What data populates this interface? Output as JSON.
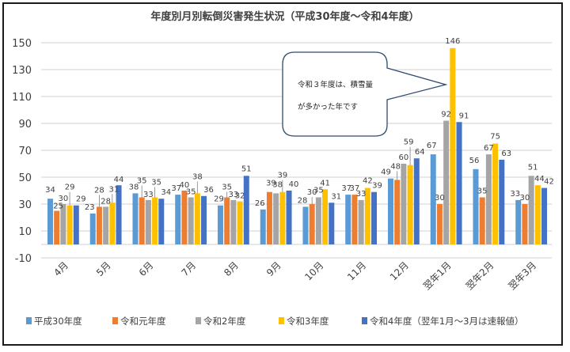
{
  "chart_data": {
    "type": "bar",
    "title": "年度別月別転倒災害発生状況（平成30年度～令和4年度）",
    "xlabel": "",
    "ylabel": "",
    "ylim": [
      -10,
      150
    ],
    "yticks": [
      -10,
      10,
      30,
      50,
      70,
      90,
      110,
      130,
      150
    ],
    "grid": true,
    "legend_position": "bottom",
    "categories": [
      "4月",
      "5月",
      "6月",
      "7月",
      "8月",
      "9月",
      "10月",
      "11月",
      "12月",
      "翌年1月",
      "翌年2月",
      "翌年3月"
    ],
    "series": [
      {
        "name": "平成30年度",
        "color": "#5B9BD5",
        "values": [
          34,
          23,
          38,
          37,
          29,
          26,
          28,
          37,
          49,
          67,
          56,
          33
        ]
      },
      {
        "name": "令和元年度",
        "color": "#ED7D31",
        "values": [
          25,
          28,
          35,
          40,
          35,
          39,
          30,
          37,
          48,
          30,
          35,
          30
        ]
      },
      {
        "name": "令和2年度",
        "color": "#A5A5A5",
        "values": [
          30,
          28,
          33,
          35,
          33,
          38,
          35,
          33,
          60,
          92,
          67,
          51
        ]
      },
      {
        "name": "令和3年度",
        "color": "#FFC000",
        "values": [
          29,
          31,
          35,
          38,
          32,
          39,
          41,
          42,
          59,
          146,
          75,
          44
        ]
      },
      {
        "name": "令和4年度（翌年1月～3月は速報値）",
        "color": "#4472C4",
        "values": [
          29,
          44,
          34,
          36,
          51,
          40,
          31,
          39,
          64,
          91,
          63,
          42
        ]
      }
    ],
    "annotations": [
      {
        "text_lines": [
          "令和３年度は、積雪量",
          "が多かった年です"
        ],
        "points_to": {
          "category": "翌年1月",
          "series": "令和3年度"
        }
      }
    ]
  }
}
